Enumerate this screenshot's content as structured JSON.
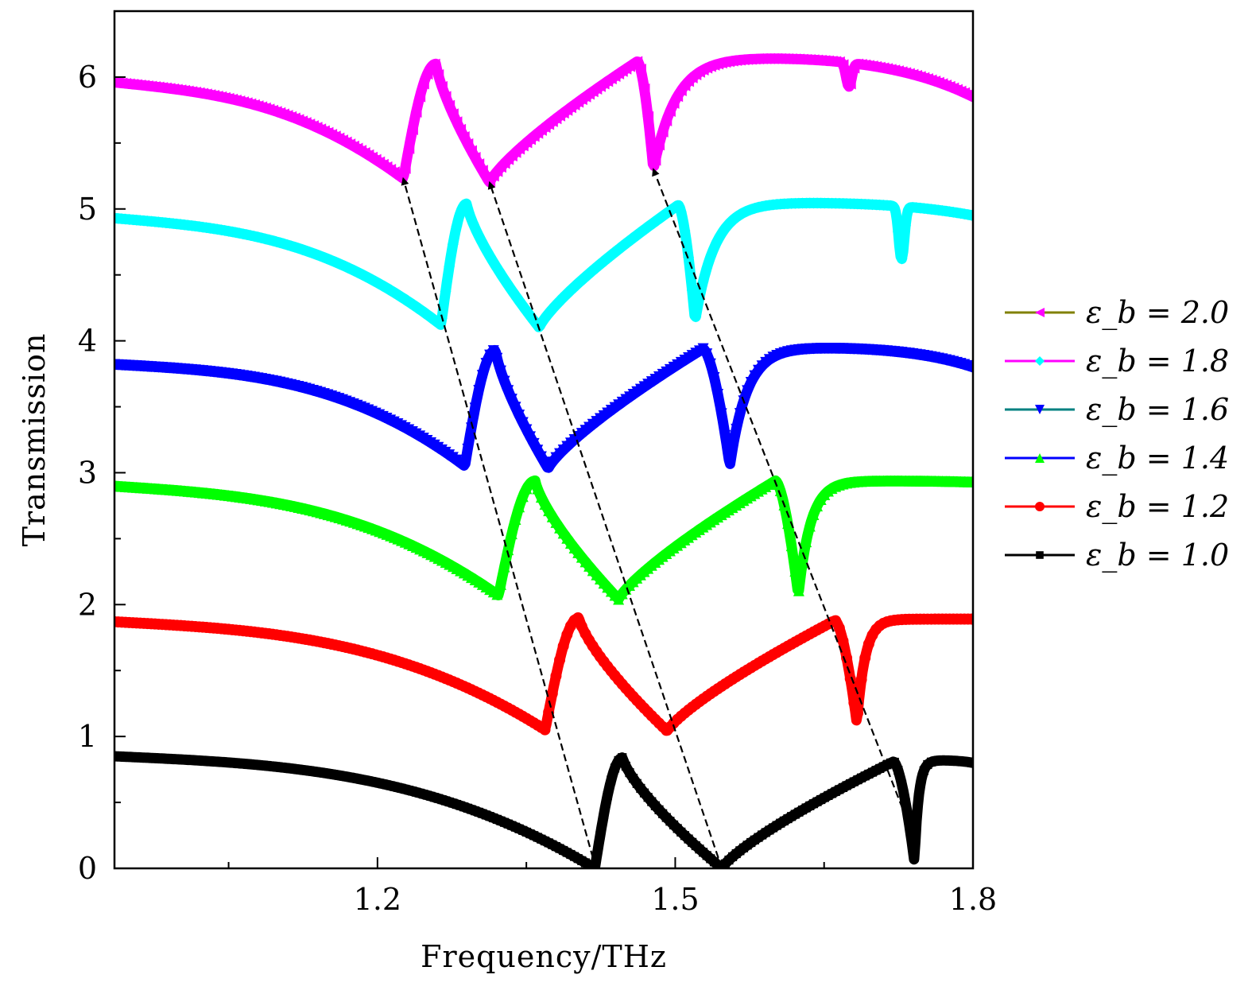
{
  "chart_data": {
    "type": "line",
    "xlabel": "Frequency/THz",
    "ylabel": "Transmission",
    "xlim": [
      0.935,
      1.8
    ],
    "ylim": [
      0,
      6.5
    ],
    "xticks": [
      1.2,
      1.5,
      1.8
    ],
    "xtick_labels": [
      "1.2",
      "1.5",
      "1.8"
    ],
    "xminor_ticks": [
      1.05,
      1.35,
      1.65
    ],
    "yticks": [
      0,
      1,
      2,
      3,
      4,
      5,
      6
    ],
    "ytick_labels": [
      "0",
      "1",
      "2",
      "3",
      "4",
      "5",
      "6"
    ],
    "grid": false,
    "legend_position": "right",
    "series": [
      {
        "name": "εb = 2.0",
        "legend_text": "ε_b = 2.0",
        "line_color": "#808000",
        "marker_color": "#ff00ff",
        "marker": "triangle-left",
        "offset": 5.0,
        "base": 0.96,
        "right_value": 0.95,
        "dip1": {
          "x": 1.226,
          "y": 0.23
        },
        "peak1": {
          "x": 1.259,
          "y": 1.1
        },
        "dip2": {
          "x": 1.313,
          "y": 0.2
        },
        "peak2": {
          "x": 1.462,
          "y": 1.12
        },
        "dip3": {
          "x": 1.478,
          "y": 0.3
        },
        "plateau": 1.15,
        "notch": {
          "x": 1.675,
          "depth": 0.18
        },
        "end_drop": 0.3
      },
      {
        "name": "εb = 1.8",
        "legend_text": "ε_b = 1.8",
        "line_color": "#ff00ff",
        "marker_color": "#00ffff",
        "marker": "diamond",
        "offset": 4.0,
        "base": 0.93,
        "right_value": 0.72,
        "dip1": {
          "x": 1.264,
          "y": 0.12
        },
        "peak1": {
          "x": 1.29,
          "y": 1.04
        },
        "dip2": {
          "x": 1.363,
          "y": 0.1
        },
        "peak2": {
          "x": 1.503,
          "y": 1.03
        },
        "dip3": {
          "x": 1.52,
          "y": 0.15
        },
        "plateau": 1.05,
        "notch": {
          "x": 1.728,
          "depth": 0.4
        },
        "end_drop": 0.1
      },
      {
        "name": "εb = 1.6",
        "legend_text": "ε_b = 1.6",
        "line_color": "#008080",
        "marker_color": "#0000ff",
        "marker": "triangle-down",
        "offset": 3.0,
        "base": 0.82,
        "right_value": 0.8,
        "dip1": {
          "x": 1.288,
          "y": 0.05
        },
        "peak1": {
          "x": 1.319,
          "y": 0.93
        },
        "dip2": {
          "x": 1.372,
          "y": 0.03
        },
        "peak2": {
          "x": 1.528,
          "y": 0.94
        },
        "dip3": {
          "x": 1.555,
          "y": 0.05
        },
        "plateau": 0.95,
        "notch": null,
        "end_drop": 0.15
      },
      {
        "name": "εb = 1.4",
        "legend_text": "ε_b = 1.4",
        "line_color": "#0000ff",
        "marker_color": "#00ff00",
        "marker": "triangle-up",
        "offset": 2.0,
        "base": 0.9,
        "right_value": 0.93,
        "dip1": {
          "x": 1.322,
          "y": 0.07
        },
        "peak1": {
          "x": 1.359,
          "y": 0.94
        },
        "dip2": {
          "x": 1.443,
          "y": 0.04
        },
        "peak2": {
          "x": 1.601,
          "y": 0.94
        },
        "dip3": {
          "x": 1.624,
          "y": 0.07
        },
        "plateau": 0.94,
        "notch": null,
        "end_drop": 0.01
      },
      {
        "name": "εb = 1.2",
        "legend_text": "ε_b = 1.2",
        "line_color": "#ff0000",
        "marker_color": "#ff0000",
        "marker": "circle",
        "offset": 1.0,
        "base": 0.87,
        "right_value": 0.89,
        "dip1": {
          "x": 1.369,
          "y": 0.05
        },
        "peak1": {
          "x": 1.403,
          "y": 0.9
        },
        "dip2": {
          "x": 1.492,
          "y": 0.04
        },
        "peak2": {
          "x": 1.661,
          "y": 0.88
        },
        "dip3": {
          "x": 1.683,
          "y": 0.1
        },
        "plateau": 0.89,
        "notch": null,
        "end_drop": 0.0
      },
      {
        "name": "εb = 1.0",
        "legend_text": "ε_b = 1.0",
        "line_color": "#000000",
        "marker_color": "#000000",
        "marker": "square",
        "offset": 0.0,
        "base": 0.85,
        "right_value": 0.8,
        "dip1": {
          "x": 1.419,
          "y": 0.0
        },
        "peak1": {
          "x": 1.447,
          "y": 0.84
        },
        "dip2": {
          "x": 1.547,
          "y": 0.0
        },
        "peak2": {
          "x": 1.72,
          "y": 0.81
        },
        "dip3": {
          "x": 1.741,
          "y": 0.05
        },
        "plateau": 0.82,
        "notch": null,
        "end_drop": 0.02
      }
    ],
    "arrows": [
      {
        "from": {
          "x": 1.42,
          "y": 0.0
        },
        "to": {
          "x": 1.226,
          "y": 5.23
        }
      },
      {
        "from": {
          "x": 1.547,
          "y": 0.0
        },
        "to": {
          "x": 1.313,
          "y": 5.2
        }
      },
      {
        "from": {
          "x": 1.737,
          "y": 0.3
        },
        "to": {
          "x": 1.478,
          "y": 5.3
        }
      }
    ]
  },
  "legend_entries": [
    "ε_b = 2.0",
    "ε_b = 1.8",
    "ε_b = 1.6",
    "ε_b = 1.4",
    "ε_b = 1.2",
    "ε_b = 1.0"
  ]
}
